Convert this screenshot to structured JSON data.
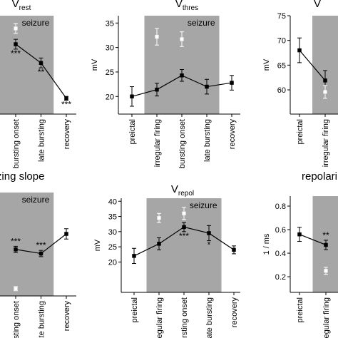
{
  "chart_data": [
    {
      "type": "line",
      "title": "V",
      "title_sub": "rest",
      "categories": [
        "bursting onset",
        "late bursting",
        "recovery"
      ],
      "ylim": [
        0,
        100
      ],
      "series": [
        {
          "color": "#000000",
          "values": [
            71,
            52,
            16
          ],
          "errors": [
            5,
            5,
            2
          ],
          "connect": true
        },
        {
          "color": "#ffffff",
          "values": [
            87,
            null,
            null
          ],
          "errors": [
            5,
            null,
            null
          ],
          "connect": false
        }
      ],
      "stars": [
        "***",
        "**",
        "***"
      ],
      "seizure_to": 1,
      "seizure_label": "seizure"
    },
    {
      "type": "line",
      "title": "V",
      "title_sub": "thres",
      "y_label": "mV",
      "categories": [
        "preictal",
        "irregular firing",
        "bursting onset",
        "late bursting",
        "recovery"
      ],
      "ylim": [
        16.4,
        36.5
      ],
      "yticks": [
        20,
        25,
        30,
        35
      ],
      "series": [
        {
          "color": "#000000",
          "values": [
            20,
            21.4,
            24.3,
            22,
            22.8
          ],
          "errors": [
            2,
            1.3,
            1.2,
            1.5,
            1.5
          ],
          "connect": true
        },
        {
          "color": "#ffffff",
          "values": [
            null,
            32.2,
            31.7,
            null,
            null
          ],
          "errors": [
            null,
            1.7,
            1.5,
            null,
            null
          ],
          "connect": false
        }
      ],
      "seizure_from": 1,
      "seizure_to": 3,
      "seizure_label": "seizure"
    },
    {
      "type": "line",
      "title": "V",
      "y_label": "mV",
      "categories": [
        "preictal",
        "irregular firing"
      ],
      "ylim": [
        55.1,
        75
      ],
      "yticks": [
        60,
        65,
        70,
        75
      ],
      "series": [
        {
          "color": "#000000",
          "values": [
            68,
            61.9
          ],
          "errors": [
            2.5,
            2
          ],
          "connect": true
        },
        {
          "color": "#ffffff",
          "values": [
            null,
            59.6
          ],
          "errors": [
            null,
            1.3
          ],
          "connect": false
        }
      ],
      "seizure_from": 1
    },
    {
      "type": "line",
      "title": "izing slope",
      "categories": [
        "bursting onset",
        "late bursting",
        "recovery"
      ],
      "ylim": [
        0,
        100
      ],
      "series": [
        {
          "color": "#000000",
          "values": [
            45,
            41,
            60
          ],
          "errors": [
            3,
            3,
            5
          ],
          "connect": true
        },
        {
          "color": "#ffffff",
          "values": [
            7,
            null,
            null
          ],
          "errors": [
            2,
            null,
            null
          ],
          "connect": false
        }
      ],
      "stars": [
        "***",
        "***",
        null
      ],
      "seizure_to": 1,
      "seizure_label": "seizure"
    },
    {
      "type": "line",
      "title": "V",
      "title_sub": "repol",
      "y_label": "mV",
      "categories": [
        "preictal",
        "irregular firing",
        "bursting onset",
        "late bursting",
        "recovery"
      ],
      "ylim": [
        10,
        41
      ],
      "yticks": [
        20,
        25,
        30,
        35,
        40
      ],
      "series": [
        {
          "color": "#000000",
          "values": [
            22,
            26,
            31.5,
            29.5,
            24
          ],
          "errors": [
            2.5,
            2,
            1.5,
            2.5,
            1.3
          ],
          "connect": true
        },
        {
          "color": "#ffffff",
          "values": [
            null,
            34.5,
            36,
            null,
            null
          ],
          "errors": [
            null,
            1.5,
            2,
            null,
            null
          ],
          "connect": false
        }
      ],
      "stars": [
        null,
        null,
        "***",
        "*",
        null
      ],
      "seizure_from": 1,
      "seizure_to": 3,
      "seizure_label": "seizure"
    },
    {
      "type": "line",
      "title": "repolari",
      "y_label": "1 / ms",
      "categories": [
        "preictal",
        "irregular firing"
      ],
      "ylim": [
        0.067,
        0.885
      ],
      "yticks": [
        0.2,
        0.4,
        0.6,
        0.8
      ],
      "series": [
        {
          "color": "#000000",
          "values": [
            0.56,
            0.47
          ],
          "errors": [
            0.06,
            0.04
          ],
          "connect": true
        },
        {
          "color": "#ffffff",
          "values": [
            null,
            0.25
          ],
          "errors": [
            null,
            0.03
          ],
          "connect": false
        }
      ],
      "stars": [
        null,
        "**"
      ],
      "seizure_from": 1
    }
  ]
}
